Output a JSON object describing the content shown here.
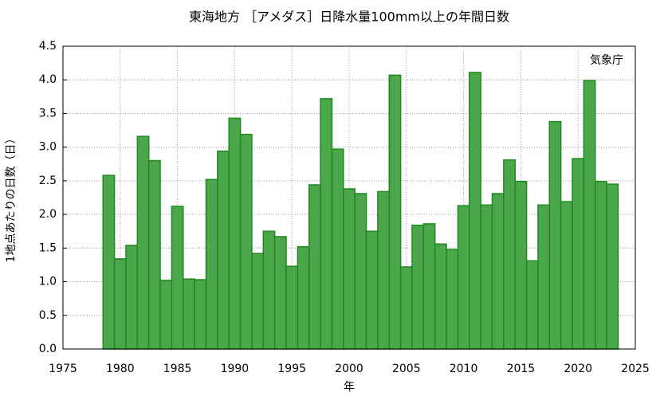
{
  "chart_data": {
    "type": "bar",
    "title": "東海地方 ［アメダス］日降水量100mm以上の年間日数",
    "xlabel": "年",
    "ylabel": "1地点あたりの日数（日）",
    "annotation": "気象庁",
    "x": [
      1979,
      1980,
      1981,
      1982,
      1983,
      1984,
      1985,
      1986,
      1987,
      1988,
      1989,
      1990,
      1991,
      1992,
      1993,
      1994,
      1995,
      1996,
      1997,
      1998,
      1999,
      2000,
      2001,
      2002,
      2003,
      2004,
      2005,
      2006,
      2007,
      2008,
      2009,
      2010,
      2011,
      2012,
      2013,
      2014,
      2015,
      2016,
      2017,
      2018,
      2019,
      2020,
      2021,
      2022,
      2023
    ],
    "values": [
      2.58,
      1.34,
      1.54,
      3.16,
      2.8,
      1.02,
      2.12,
      1.04,
      1.03,
      2.52,
      2.94,
      3.43,
      3.19,
      1.42,
      1.75,
      1.67,
      1.23,
      1.52,
      2.44,
      3.72,
      2.97,
      2.38,
      2.31,
      1.75,
      2.34,
      4.07,
      1.22,
      1.84,
      1.86,
      1.56,
      1.48,
      2.13,
      4.11,
      2.14,
      2.31,
      2.81,
      2.49,
      1.31,
      2.14,
      3.38,
      2.19,
      2.83,
      3.99,
      2.49,
      2.45
    ],
    "color": "#4ca64c",
    "edgecolor": "#1e8a1e",
    "xlim": [
      1975,
      2025
    ],
    "xticks": [
      1975,
      1980,
      1985,
      1990,
      1995,
      2000,
      2005,
      2010,
      2015,
      2020,
      2025
    ],
    "ylim": [
      0,
      4.5
    ],
    "yticks": [
      {
        "value": 0,
        "label": "0.0"
      },
      {
        "value": 0.5,
        "label": "0.5"
      },
      {
        "value": 1,
        "label": "1.0"
      },
      {
        "value": 1.5,
        "label": "1.5"
      },
      {
        "value": 2,
        "label": "2.0"
      },
      {
        "value": 2.5,
        "label": "2.5"
      },
      {
        "value": 3,
        "label": "3.0"
      },
      {
        "value": 3.5,
        "label": "3.5"
      },
      {
        "value": 4,
        "label": "4.0"
      },
      {
        "value": 4.5,
        "label": "4.5"
      }
    ],
    "grid": true
  }
}
